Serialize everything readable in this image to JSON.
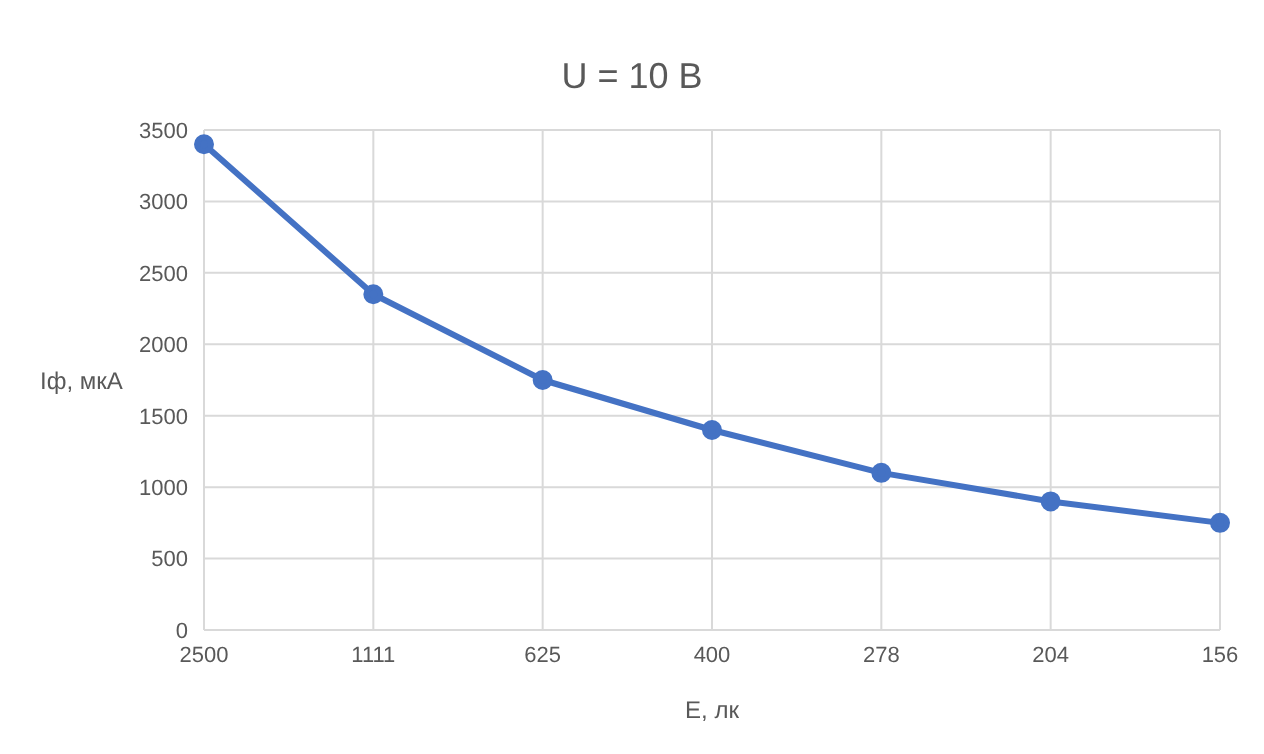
{
  "chart_data": {
    "type": "line",
    "title": "U = 10 В",
    "xlabel": "E, лк",
    "ylabel": "Iф, мкА",
    "categories": [
      "2500",
      "1111",
      "625",
      "400",
      "278",
      "204",
      "156"
    ],
    "series": [
      {
        "color": "#4472c4",
        "values": [
          3400,
          2350,
          1750,
          1400,
          1100,
          900,
          750
        ]
      }
    ],
    "ylim": [
      0,
      3500
    ],
    "yticks": [
      0,
      500,
      1000,
      1500,
      2000,
      2500,
      3000,
      3500
    ],
    "grid": true,
    "legend": false,
    "marker": "circle",
    "line_style": "solid"
  }
}
